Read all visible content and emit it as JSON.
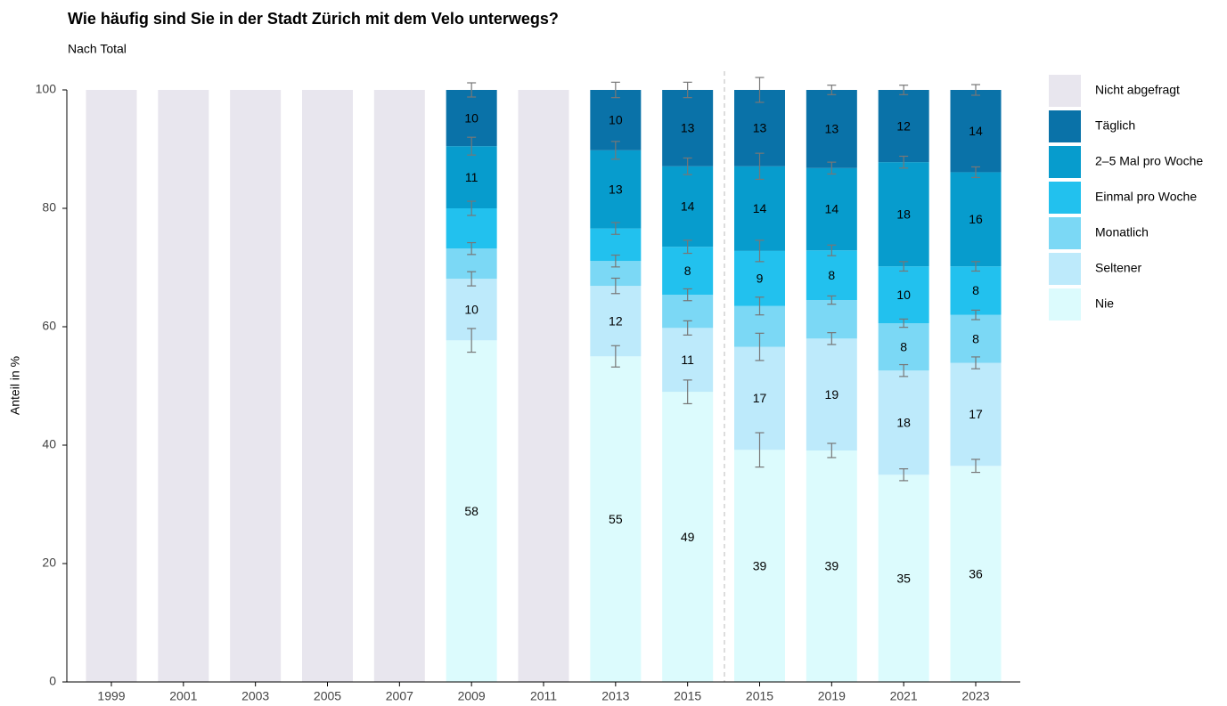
{
  "chart_data": {
    "type": "stacked_bar",
    "title": "Wie häufig sind Sie in der Stadt Zürich mit dem Velo unterwegs?",
    "subtitle": "Nach Total",
    "y_label": "Anteil in %",
    "categories": [
      "1999",
      "2001",
      "2003",
      "2005",
      "2007",
      "2009",
      "2011",
      "2013",
      "2015",
      "2015",
      "2019",
      "2021",
      "2023"
    ],
    "ylim": [
      0,
      100
    ],
    "yticks": [
      0,
      20,
      40,
      60,
      80,
      100
    ],
    "series": [
      {
        "name": "Nie",
        "color": "#dcfbfd",
        "values": [
          null,
          null,
          null,
          null,
          null,
          57.7,
          null,
          55.0,
          49.0,
          39.2,
          39.1,
          35.0,
          36.5
        ],
        "value_labels": [
          null,
          null,
          null,
          null,
          null,
          "58",
          null,
          "55",
          "49",
          "39",
          "39",
          "35",
          "36"
        ],
        "errors": [
          null,
          null,
          null,
          null,
          null,
          2.0,
          null,
          1.8,
          2.0,
          2.9,
          1.2,
          1.0,
          1.1
        ]
      },
      {
        "name": "Seltener",
        "color": "#bdeafb",
        "values": [
          null,
          null,
          null,
          null,
          null,
          10.4,
          null,
          11.9,
          10.8,
          17.4,
          18.9,
          17.6,
          17.4
        ],
        "value_labels": [
          null,
          null,
          null,
          null,
          null,
          "10",
          null,
          "12",
          "11",
          "17",
          "19",
          "18",
          "17"
        ],
        "errors": [
          null,
          null,
          null,
          null,
          null,
          1.2,
          null,
          1.3,
          1.2,
          2.3,
          1.0,
          1.0,
          1.0
        ]
      },
      {
        "name": "Monatlich",
        "color": "#7bd8f5",
        "values": [
          null,
          null,
          null,
          null,
          null,
          5.1,
          null,
          4.2,
          5.6,
          6.9,
          6.5,
          8.0,
          8.1
        ],
        "value_labels": [
          null,
          null,
          null,
          null,
          null,
          null,
          null,
          null,
          null,
          null,
          null,
          "8",
          "8"
        ],
        "errors": [
          null,
          null,
          null,
          null,
          null,
          1.0,
          null,
          1.0,
          1.0,
          1.5,
          0.7,
          0.7,
          0.8
        ]
      },
      {
        "name": "Einmal pro Woche",
        "color": "#22c1ee",
        "values": [
          null,
          null,
          null,
          null,
          null,
          6.8,
          null,
          5.5,
          8.1,
          9.3,
          8.4,
          9.6,
          8.2
        ],
        "value_labels": [
          null,
          null,
          null,
          null,
          null,
          null,
          null,
          null,
          "8",
          "9",
          "8",
          "10",
          "8"
        ],
        "errors": [
          null,
          null,
          null,
          null,
          null,
          1.2,
          null,
          1.0,
          1.1,
          1.8,
          0.9,
          0.8,
          0.8
        ]
      },
      {
        "name": "2–5 Mal pro Woche",
        "color": "#079ccd",
        "values": [
          null,
          null,
          null,
          null,
          null,
          10.5,
          null,
          13.2,
          13.6,
          14.3,
          13.9,
          17.6,
          15.9
        ],
        "value_labels": [
          null,
          null,
          null,
          null,
          null,
          "11",
          null,
          "13",
          "14",
          "14",
          "14",
          "18",
          "16"
        ],
        "errors": [
          null,
          null,
          null,
          null,
          null,
          1.5,
          null,
          1.5,
          1.4,
          2.2,
          1.0,
          1.0,
          0.9
        ]
      },
      {
        "name": "Täglich",
        "color": "#0a72a8",
        "values": [
          null,
          null,
          null,
          null,
          null,
          9.5,
          null,
          10.2,
          12.9,
          12.9,
          13.2,
          12.2,
          13.9
        ],
        "value_labels": [
          null,
          null,
          null,
          null,
          null,
          "10",
          null,
          "10",
          "13",
          "13",
          "13",
          "12",
          "14"
        ],
        "errors": [
          null,
          null,
          null,
          null,
          null,
          1.2,
          null,
          1.3,
          1.3,
          2.1,
          0.8,
          0.8,
          0.9
        ]
      },
      {
        "name": "Nicht abgefragt",
        "color": "#e8e6ee",
        "values": [
          100,
          100,
          100,
          100,
          100,
          null,
          100,
          null,
          null,
          null,
          null,
          null,
          null
        ]
      }
    ]
  }
}
